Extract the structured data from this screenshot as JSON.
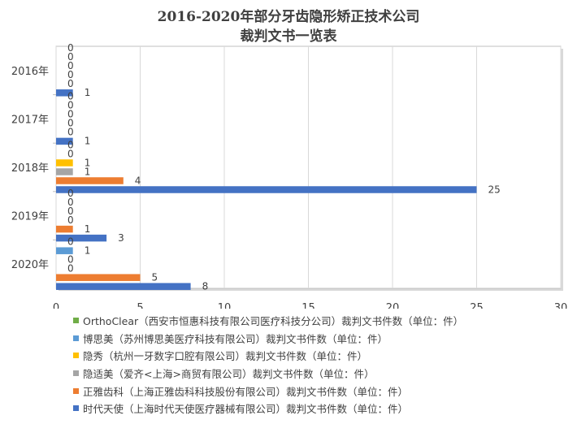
{
  "chart_data": {
    "type": "bar",
    "orientation": "horizontal",
    "title_line1": "2016-2020年部分牙齿隐形矫正技术公司",
    "title_line2": "裁判文书一览表",
    "categories": [
      "2016年",
      "2017年",
      "2018年",
      "2019年",
      "2020年"
    ],
    "xlim": [
      0,
      30
    ],
    "x_ticks": [
      "0",
      "5",
      "10",
      "15",
      "20",
      "25",
      "30"
    ],
    "grid": true,
    "legend_position": "bottom",
    "series": [
      {
        "name": "时代天使（上海时代天使医疗器械有限公司）裁判文书件数（单位：件）",
        "color": "#4472C4",
        "values": [
          1,
          1,
          25,
          3,
          8
        ]
      },
      {
        "name": "正雅齿科（上海正雅齿科科技股份有限公司）裁判文书件数（单位：件）",
        "color": "#ED7D31",
        "values": [
          0,
          0,
          4,
          1,
          5
        ]
      },
      {
        "name": "隐适美（爱齐<上海>商贸有限公司）裁判文书件数（单位：件）",
        "color": "#A5A5A5",
        "values": [
          0,
          0,
          1,
          0,
          0
        ]
      },
      {
        "name": "隐秀（杭州一牙数字口腔有限公司）裁判文书件数（单位：件）",
        "color": "#FFC000",
        "values": [
          0,
          0,
          1,
          0,
          0
        ]
      },
      {
        "name": "博思美（苏州博思美医疗科技有限公司）裁判文书件数（单位：件）",
        "color": "#5B9BD5",
        "values": [
          0,
          0,
          0,
          0,
          1
        ]
      },
      {
        "name": "OrthoClear（西安市恒惠科技有限公司医疗科技分公司）裁判文书件数（单位：件）",
        "color": "#70AD47",
        "values": [
          0,
          0,
          0,
          0,
          0
        ]
      }
    ]
  }
}
